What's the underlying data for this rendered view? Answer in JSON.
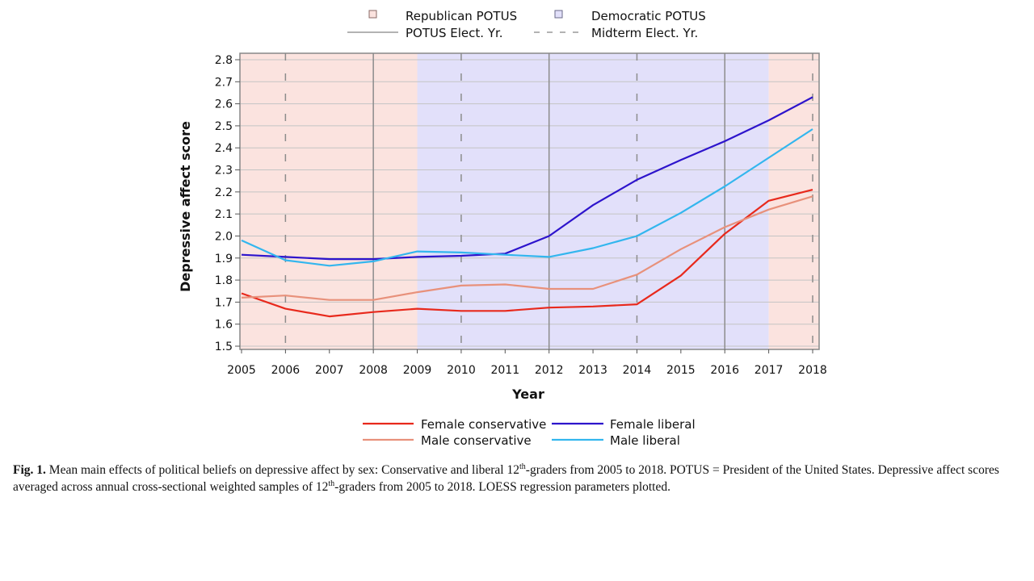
{
  "chart_data": {
    "type": "line",
    "title": "",
    "xlabel": "Year",
    "ylabel": "Depressive affect score",
    "xlim": [
      2005,
      2018
    ],
    "ylim": [
      1.5,
      2.8
    ],
    "x_ticks": [
      "2005",
      "2006",
      "2007",
      "2008",
      "2009",
      "2010",
      "2011",
      "2012",
      "2013",
      "2014",
      "2015",
      "2016",
      "2017",
      "2018"
    ],
    "y_ticks": [
      "1.5",
      "1.6",
      "1.7",
      "1.8",
      "1.9",
      "2.0",
      "2.1",
      "2.2",
      "2.3",
      "2.4",
      "2.5",
      "2.6",
      "2.7",
      "2.8"
    ],
    "grid": true,
    "x": [
      2005,
      2006,
      2007,
      2008,
      2009,
      2010,
      2011,
      2012,
      2013,
      2014,
      2015,
      2016,
      2017,
      2018
    ],
    "series": [
      {
        "name": "Female conservative",
        "color": "#e8291c",
        "values": [
          1.74,
          1.67,
          1.635,
          1.655,
          1.67,
          1.66,
          1.66,
          1.675,
          1.68,
          1.69,
          1.82,
          2.01,
          2.16,
          2.21
        ]
      },
      {
        "name": "Female liberal",
        "color": "#2d14cc",
        "values": [
          1.915,
          1.905,
          1.895,
          1.895,
          1.905,
          1.91,
          1.92,
          2.0,
          2.14,
          2.255,
          2.345,
          2.43,
          2.525,
          2.63
        ]
      },
      {
        "name": "Male conservative",
        "color": "#e8917b",
        "values": [
          1.72,
          1.73,
          1.71,
          1.71,
          1.745,
          1.775,
          1.78,
          1.76,
          1.76,
          1.825,
          1.94,
          2.04,
          2.12,
          2.18
        ]
      },
      {
        "name": "Male liberal",
        "color": "#33b6ee",
        "values": [
          1.98,
          1.89,
          1.865,
          1.885,
          1.93,
          1.925,
          1.915,
          1.905,
          1.945,
          2.0,
          2.105,
          2.225,
          2.355,
          2.485
        ]
      }
    ],
    "background_periods": [
      {
        "label": "Republican POTUS",
        "from": 2005,
        "to": 2009,
        "color": "#fbe3df"
      },
      {
        "label": "Democratic POTUS",
        "from": 2009,
        "to": 2017,
        "color": "#e2e0fa"
      },
      {
        "label": "Republican POTUS",
        "from": 2017,
        "to": 2018,
        "color": "#fbe3df"
      }
    ],
    "election_lines": {
      "potus_years": [
        2008,
        2012,
        2016
      ],
      "midterm_years": [
        2006,
        2010,
        2014,
        2018
      ]
    },
    "top_legend": {
      "republican": "Republican POTUS",
      "democratic": "Democratic POTUS",
      "potus_election": "POTUS Elect. Yr.",
      "midterm_election": "Midterm Elect. Yr."
    },
    "legend_placement": "bottom"
  },
  "caption": {
    "label": "Fig. 1.",
    "seg1": " Mean main effects of political beliefs on depressive affect by sex: Conservative and liberal 12",
    "sup1": "th",
    "seg2": "-graders from 2005 to 2018. POTUS = President of the United States. Depressive affect scores averaged across annual cross-sectional weighted samples of 12",
    "sup2": "th",
    "seg3": "-graders from 2005 to 2018. LOESS regression parameters plotted."
  }
}
